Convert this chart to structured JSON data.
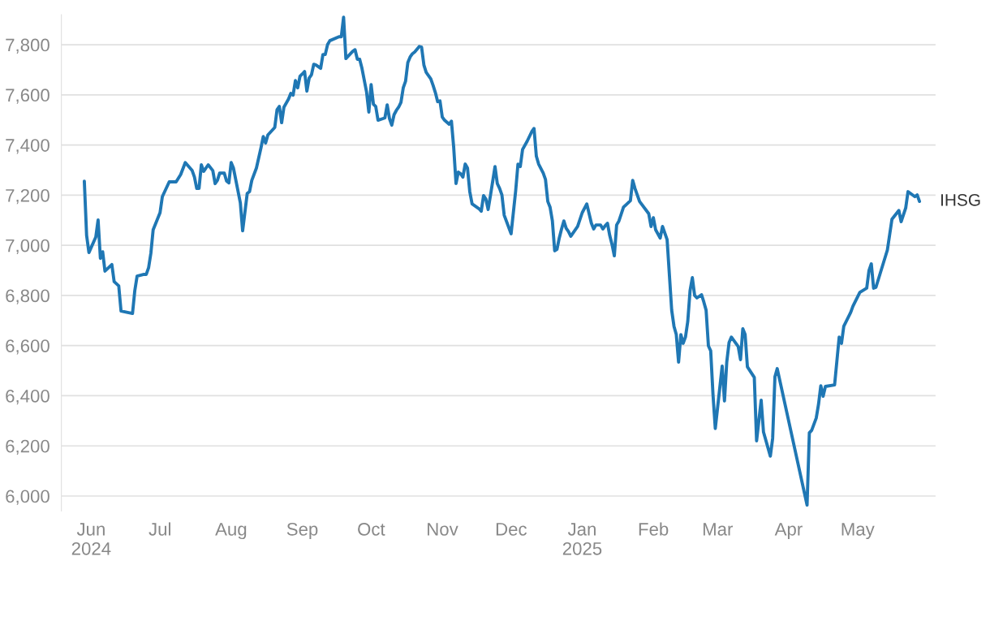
{
  "chart_data": {
    "type": "line",
    "x": [
      "2024-05-29",
      "2024-05-30",
      "2024-05-31",
      "2024-06-03",
      "2024-06-04",
      "2024-06-05",
      "2024-06-06",
      "2024-06-07",
      "2024-06-10",
      "2024-06-11",
      "2024-06-13",
      "2024-06-14",
      "2024-06-19",
      "2024-06-20",
      "2024-06-21",
      "2024-06-24",
      "2024-06-25",
      "2024-06-26",
      "2024-06-27",
      "2024-06-28",
      "2024-07-01",
      "2024-07-02",
      "2024-07-05",
      "2024-07-08",
      "2024-07-10",
      "2024-07-12",
      "2024-07-15",
      "2024-07-16",
      "2024-07-17",
      "2024-07-18",
      "2024-07-19",
      "2024-07-20",
      "2024-07-22",
      "2024-07-24",
      "2024-07-25",
      "2024-07-26",
      "2024-07-27",
      "2024-07-29",
      "2024-07-30",
      "2024-07-31",
      "2024-08-01",
      "2024-08-02",
      "2024-08-05",
      "2024-08-06",
      "2024-08-08",
      "2024-08-09",
      "2024-08-10",
      "2024-08-12",
      "2024-08-14",
      "2024-08-15",
      "2024-08-16",
      "2024-08-17",
      "2024-08-20",
      "2024-08-21",
      "2024-08-22",
      "2024-08-23",
      "2024-08-24",
      "2024-08-26",
      "2024-08-27",
      "2024-08-28",
      "2024-08-29",
      "2024-08-30",
      "2024-08-31",
      "2024-09-01",
      "2024-09-02",
      "2024-09-03",
      "2024-09-04",
      "2024-09-05",
      "2024-09-06",
      "2024-09-07",
      "2024-09-09",
      "2024-09-10",
      "2024-09-11",
      "2024-09-12",
      "2024-09-13",
      "2024-09-17",
      "2024-09-18",
      "2024-09-19",
      "2024-09-20",
      "2024-09-23",
      "2024-09-24",
      "2024-09-25",
      "2024-09-26",
      "2024-09-27",
      "2024-09-29",
      "2024-09-30",
      "2024-10-01",
      "2024-10-02",
      "2024-10-03",
      "2024-10-04",
      "2024-10-07",
      "2024-10-08",
      "2024-10-09",
      "2024-10-10",
      "2024-10-11",
      "2024-10-12",
      "2024-10-13",
      "2024-10-14",
      "2024-10-15",
      "2024-10-16",
      "2024-10-17",
      "2024-10-18",
      "2024-10-19",
      "2024-10-20",
      "2024-10-22",
      "2024-10-23",
      "2024-10-24",
      "2024-10-25",
      "2024-10-27",
      "2024-10-28",
      "2024-10-29",
      "2024-10-30",
      "2024-10-31",
      "2024-11-01",
      "2024-11-02",
      "2024-11-04",
      "2024-11-05",
      "2024-11-06",
      "2024-11-07",
      "2024-11-08",
      "2024-11-09",
      "2024-11-10",
      "2024-11-11",
      "2024-11-12",
      "2024-11-13",
      "2024-11-14",
      "2024-11-17",
      "2024-11-18",
      "2024-11-19",
      "2024-11-20",
      "2024-11-21",
      "2024-11-22",
      "2024-11-23",
      "2024-11-24",
      "2024-11-25",
      "2024-11-26",
      "2024-11-27",
      "2024-11-28",
      "2024-11-30",
      "2024-12-01",
      "2024-12-03",
      "2024-12-04",
      "2024-12-05",
      "2024-12-06",
      "2024-12-08",
      "2024-12-10",
      "2024-12-11",
      "2024-12-12",
      "2024-12-13",
      "2024-12-15",
      "2024-12-16",
      "2024-12-17",
      "2024-12-18",
      "2024-12-19",
      "2024-12-20",
      "2024-12-21",
      "2024-12-22",
      "2024-12-23",
      "2024-12-24",
      "2024-12-25",
      "2024-12-26",
      "2024-12-27",
      "2024-12-30",
      "2025-01-01",
      "2025-01-03",
      "2025-01-05",
      "2025-01-06",
      "2025-01-07",
      "2025-01-09",
      "2025-01-10",
      "2025-01-11",
      "2025-01-12",
      "2025-01-13",
      "2025-01-14",
      "2025-01-15",
      "2025-01-16",
      "2025-01-17",
      "2025-01-19",
      "2025-01-21",
      "2025-01-22",
      "2025-01-23",
      "2025-01-24",
      "2025-01-26",
      "2025-01-30",
      "2025-01-31",
      "2025-02-01",
      "2025-02-02",
      "2025-02-04",
      "2025-02-05",
      "2025-02-07",
      "2025-02-09",
      "2025-02-10",
      "2025-02-11",
      "2025-02-12",
      "2025-02-13",
      "2025-02-14",
      "2025-02-15",
      "2025-02-16",
      "2025-02-17",
      "2025-02-18",
      "2025-02-19",
      "2025-02-20",
      "2025-02-22",
      "2025-02-23",
      "2025-02-24",
      "2025-02-25",
      "2025-02-26",
      "2025-02-27",
      "2025-02-28",
      "2025-03-03",
      "2025-03-04",
      "2025-03-05",
      "2025-03-06",
      "2025-03-07",
      "2025-03-10",
      "2025-03-11",
      "2025-03-12",
      "2025-03-13",
      "2025-03-14",
      "2025-03-17",
      "2025-03-18",
      "2025-03-20",
      "2025-03-21",
      "2025-03-24",
      "2025-03-25",
      "2025-03-26",
      "2025-03-27",
      "2025-04-09",
      "2025-04-10",
      "2025-04-11",
      "2025-04-13",
      "2025-04-14",
      "2025-04-15",
      "2025-04-16",
      "2025-04-17",
      "2025-04-21",
      "2025-04-23",
      "2025-04-24",
      "2025-04-25",
      "2025-04-28",
      "2025-04-29",
      "2025-05-02",
      "2025-05-05",
      "2025-05-06",
      "2025-05-07",
      "2025-05-08",
      "2025-05-09",
      "2025-05-14",
      "2025-05-16",
      "2025-05-19",
      "2025-05-20",
      "2025-05-22",
      "2025-05-23",
      "2025-05-26",
      "2025-05-27",
      "2025-05-28"
    ],
    "series": [
      {
        "name": "IHSG",
        "color": "#1f77b4",
        "values": [
          7256,
          7039,
          6971,
          7033,
          7101,
          6948,
          6974,
          6897,
          6923,
          6855,
          6838,
          6738,
          6728,
          6819,
          6877,
          6884,
          6884,
          6910,
          6968,
          7062,
          7130,
          7194,
          7253,
          7253,
          7282,
          7330,
          7298,
          7272,
          7227,
          7227,
          7321,
          7295,
          7321,
          7298,
          7246,
          7259,
          7288,
          7288,
          7256,
          7249,
          7330,
          7308,
          7169,
          7058,
          7207,
          7214,
          7259,
          7308,
          7389,
          7434,
          7408,
          7440,
          7470,
          7541,
          7554,
          7489,
          7551,
          7583,
          7606,
          7599,
          7657,
          7628,
          7674,
          7683,
          7693,
          7615,
          7667,
          7680,
          7722,
          7719,
          7706,
          7761,
          7761,
          7800,
          7816,
          7832,
          7832,
          7910,
          7745,
          7774,
          7780,
          7742,
          7742,
          7706,
          7612,
          7531,
          7641,
          7563,
          7554,
          7499,
          7508,
          7560,
          7505,
          7479,
          7521,
          7538,
          7551,
          7570,
          7628,
          7654,
          7729,
          7751,
          7764,
          7771,
          7793,
          7790,
          7719,
          7690,
          7664,
          7638,
          7609,
          7573,
          7576,
          7512,
          7499,
          7483,
          7495,
          7389,
          7246,
          7292,
          7285,
          7272,
          7324,
          7308,
          7214,
          7165,
          7146,
          7136,
          7198,
          7185,
          7143,
          7198,
          7256,
          7314,
          7246,
          7227,
          7201,
          7120,
          7071,
          7046,
          7217,
          7324,
          7314,
          7382,
          7415,
          7453,
          7466,
          7356,
          7324,
          7288,
          7262,
          7175,
          7152,
          7097,
          6978,
          6984,
          7029,
          7065,
          7097,
          7068,
          7055,
          7036,
          7075,
          7130,
          7165,
          7088,
          7065,
          7081,
          7081,
          7065,
          7078,
          7088,
          7039,
          7003,
          6958,
          7081,
          7097,
          7152,
          7169,
          7178,
          7259,
          7227,
          7175,
          7126,
          7075,
          7110,
          7062,
          7029,
          7075,
          7023,
          6741,
          6677,
          6644,
          6534,
          6644,
          6609,
          6634,
          6696,
          6819,
          6871,
          6800,
          6790,
          6803,
          6774,
          6741,
          6599,
          6579,
          6405,
          6269,
          6518,
          6379,
          6534,
          6612,
          6634,
          6596,
          6544,
          6667,
          6644,
          6515,
          6473,
          6220,
          6382,
          6256,
          6159,
          6230,
          6476,
          6508,
          5964,
          6252,
          6262,
          6311,
          6366,
          6440,
          6398,
          6437,
          6443,
          6634,
          6609,
          6677,
          6732,
          6757,
          6812,
          6829,
          6900,
          6926,
          6829,
          6832,
          6981,
          7104,
          7139,
          7094,
          7149,
          7214,
          7194,
          7201,
          7175
        ]
      }
    ],
    "xlim": [
      "2024-05-19",
      "2025-06-04"
    ],
    "xticks": [
      {
        "value": "2024-06-01",
        "label": "Jun\n2024"
      },
      {
        "value": "2024-07-01",
        "label": "Jul"
      },
      {
        "value": "2024-08-01",
        "label": "Aug"
      },
      {
        "value": "2024-09-01",
        "label": "Sep"
      },
      {
        "value": "2024-10-01",
        "label": "Oct"
      },
      {
        "value": "2024-11-01",
        "label": "Nov"
      },
      {
        "value": "2024-12-01",
        "label": "Dec"
      },
      {
        "value": "2025-01-01",
        "label": "Jan\n2025"
      },
      {
        "value": "2025-02-01",
        "label": "Feb"
      },
      {
        "value": "2025-03-01",
        "label": "Mar"
      },
      {
        "value": "2025-04-01",
        "label": "Apr"
      },
      {
        "value": "2025-05-01",
        "label": "May"
      }
    ],
    "ylim": [
      5940,
      7920
    ],
    "yticks": [
      {
        "value": 6000,
        "label": "6,000"
      },
      {
        "value": 6200,
        "label": "6,200"
      },
      {
        "value": 6400,
        "label": "6,400"
      },
      {
        "value": 6600,
        "label": "6,600"
      },
      {
        "value": 6800,
        "label": "6,800"
      },
      {
        "value": 7000,
        "label": "7,000"
      },
      {
        "value": 7200,
        "label": "7,200"
      },
      {
        "value": 7400,
        "label": "7,400"
      },
      {
        "value": 7600,
        "label": "7,600"
      },
      {
        "value": 7800,
        "label": "7,800"
      }
    ],
    "grid": "y",
    "legend": false
  }
}
